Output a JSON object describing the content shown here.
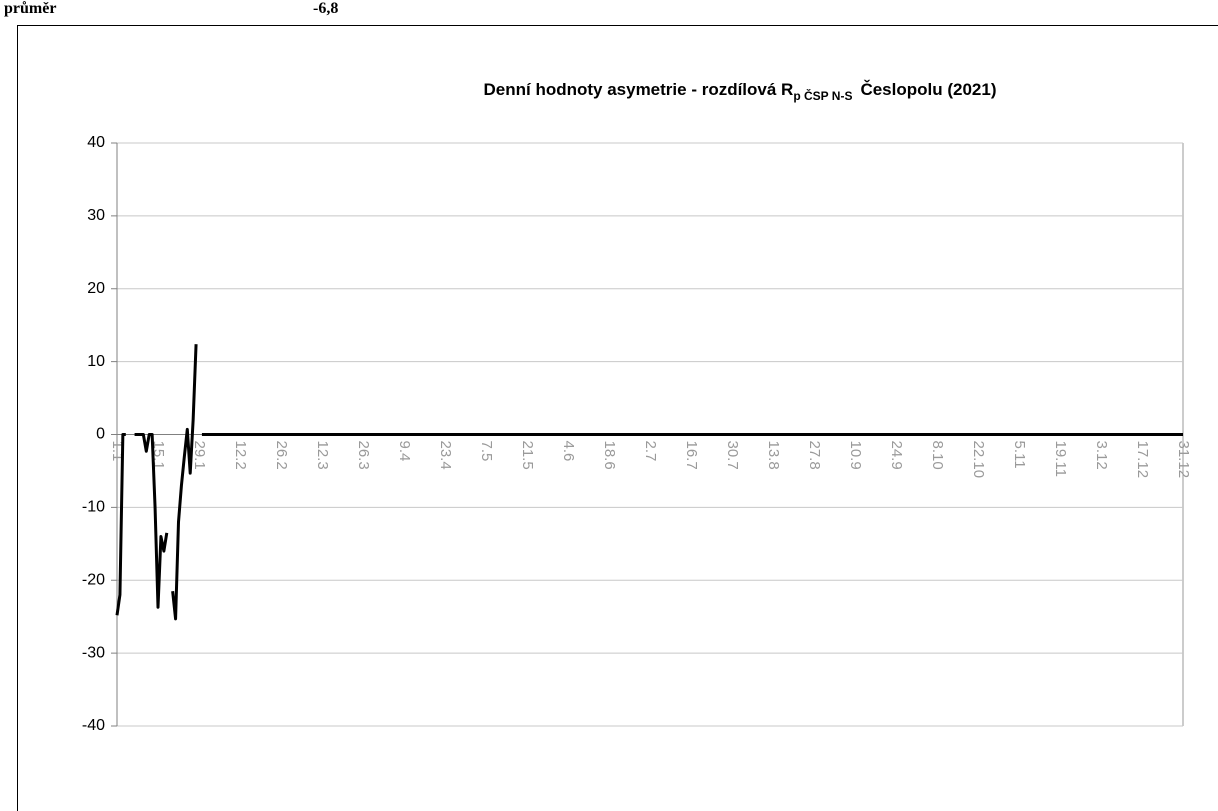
{
  "summary": {
    "label": "průměr",
    "value": "-6,8"
  },
  "chart_data": {
    "type": "line",
    "title": "Denní hodnoty asymetrie - rozdílová R",
    "title_sub": "p ČSP N-S",
    "title_end": "Česlopolu (2021)",
    "color": "#000000",
    "grid": true,
    "ylim": [
      -40,
      40
    ],
    "yticks": [
      -40,
      -30,
      -20,
      -10,
      0,
      10,
      20,
      30,
      40
    ],
    "categories": [
      "1.1",
      null,
      null,
      null,
      null,
      null,
      null,
      null,
      null,
      null,
      null,
      null,
      null,
      null,
      "15.1",
      null,
      null,
      null,
      null,
      null,
      null,
      null,
      null,
      null,
      null,
      null,
      null,
      null,
      "29.1",
      null,
      null,
      null,
      null,
      null,
      null,
      null,
      null,
      null,
      null,
      null,
      null,
      null,
      "12.2",
      null,
      null,
      null,
      null,
      null,
      null,
      null,
      null,
      null,
      null,
      null,
      null,
      null,
      "26.2",
      null,
      null,
      null,
      null,
      null,
      null,
      null,
      null,
      null,
      null,
      null,
      null,
      null,
      "12.3",
      null,
      null,
      null,
      null,
      null,
      null,
      null,
      null,
      null,
      null,
      null,
      null,
      null,
      "26.3",
      null,
      null,
      null,
      null,
      null,
      null,
      null,
      null,
      null,
      null,
      null,
      null,
      null,
      "9.4",
      null,
      null,
      null,
      null,
      null,
      null,
      null,
      null,
      null,
      null,
      null,
      null,
      null,
      "23.4",
      null,
      null,
      null,
      null,
      null,
      null,
      null,
      null,
      null,
      null,
      null,
      null,
      null,
      "7.5",
      null,
      null,
      null,
      null,
      null,
      null,
      null,
      null,
      null,
      null,
      null,
      null,
      null,
      "21.5",
      null,
      null,
      null,
      null,
      null,
      null,
      null,
      null,
      null,
      null,
      null,
      null,
      null,
      "4.6",
      null,
      null,
      null,
      null,
      null,
      null,
      null,
      null,
      null,
      null,
      null,
      null,
      null,
      "18.6",
      null,
      null,
      null,
      null,
      null,
      null,
      null,
      null,
      null,
      null,
      null,
      null,
      null,
      "2.7",
      null,
      null,
      null,
      null,
      null,
      null,
      null,
      null,
      null,
      null,
      null,
      null,
      null,
      "16.7",
      null,
      null,
      null,
      null,
      null,
      null,
      null,
      null,
      null,
      null,
      null,
      null,
      null,
      "30.7",
      null,
      null,
      null,
      null,
      null,
      null,
      null,
      null,
      null,
      null,
      null,
      null,
      null,
      "13.8",
      null,
      null,
      null,
      null,
      null,
      null,
      null,
      null,
      null,
      null,
      null,
      null,
      null,
      "27.8",
      null,
      null,
      null,
      null,
      null,
      null,
      null,
      null,
      null,
      null,
      null,
      null,
      null,
      "10.9",
      null,
      null,
      null,
      null,
      null,
      null,
      null,
      null,
      null,
      null,
      null,
      null,
      null,
      "24.9",
      null,
      null,
      null,
      null,
      null,
      null,
      null,
      null,
      null,
      null,
      null,
      null,
      null,
      "8.10",
      null,
      null,
      null,
      null,
      null,
      null,
      null,
      null,
      null,
      null,
      null,
      null,
      null,
      "22.10",
      null,
      null,
      null,
      null,
      null,
      null,
      null,
      null,
      null,
      null,
      null,
      null,
      null,
      "5.11",
      null,
      null,
      null,
      null,
      null,
      null,
      null,
      null,
      null,
      null,
      null,
      null,
      null,
      "19.11",
      null,
      null,
      null,
      null,
      null,
      null,
      null,
      null,
      null,
      null,
      null,
      null,
      null,
      "3.12",
      null,
      null,
      null,
      null,
      null,
      null,
      null,
      null,
      null,
      null,
      null,
      null,
      null,
      "17.12",
      null,
      null,
      null,
      null,
      null,
      null,
      null,
      null,
      null,
      null,
      null,
      null,
      null,
      "31.12"
    ],
    "values": [
      -24.8,
      -22,
      0,
      0,
      null,
      null,
      0,
      0,
      0,
      0,
      -2.3,
      0,
      0,
      -10,
      -23.7,
      -14,
      -16,
      -13.5,
      null,
      -21.5,
      -25.3,
      -12,
      -7,
      -3,
      0.7,
      -5.3,
      2,
      12.4,
      null,
      0,
      0,
      0,
      0,
      0,
      0,
      0,
      0,
      0,
      0,
      0,
      0,
      0,
      0,
      0,
      0,
      0,
      0,
      0,
      0,
      0,
      0,
      0,
      0,
      0,
      0,
      0,
      0,
      0,
      0,
      0,
      0,
      0,
      0,
      0,
      0,
      0,
      0,
      0,
      0,
      0,
      0,
      0,
      0,
      0,
      0,
      0,
      0,
      0,
      0,
      0,
      0,
      0,
      0,
      0,
      0,
      0,
      0,
      0,
      0,
      0,
      0,
      0,
      0,
      0,
      0,
      0,
      0,
      0,
      0,
      0,
      0,
      0,
      0,
      0,
      0,
      0,
      0,
      0,
      0,
      0,
      0,
      0,
      0,
      0,
      0,
      0,
      0,
      0,
      0,
      0,
      0,
      0,
      0,
      0,
      0,
      0,
      0,
      0,
      0,
      0,
      0,
      0,
      0,
      0,
      0,
      0,
      0,
      0,
      0,
      0,
      0,
      0,
      0,
      0,
      0,
      0,
      0,
      0,
      0,
      0,
      0,
      0,
      0,
      0,
      0,
      0,
      0,
      0,
      0,
      0,
      0,
      0,
      0,
      0,
      0,
      0,
      0,
      0,
      0,
      0,
      0,
      0,
      0,
      0,
      0,
      0,
      0,
      0,
      0,
      0,
      0,
      0,
      0,
      0,
      0,
      0,
      0,
      0,
      0,
      0,
      0,
      0,
      0,
      0,
      0,
      0,
      0,
      0,
      0,
      0,
      0,
      0,
      0,
      0,
      0,
      0,
      0,
      0,
      0,
      0,
      0,
      0,
      0,
      0,
      0,
      0,
      0,
      0,
      0,
      0,
      0,
      0,
      0,
      0,
      0,
      0,
      0,
      0,
      0,
      0,
      0,
      0,
      0,
      0,
      0,
      0,
      0,
      0,
      0,
      0,
      0,
      0,
      0,
      0,
      0,
      0,
      0,
      0,
      0,
      0,
      0,
      0,
      0,
      0,
      0,
      0,
      0,
      0,
      0,
      0,
      0,
      0,
      0,
      0,
      0,
      0,
      0,
      0,
      0,
      0,
      0,
      0,
      0,
      0,
      0,
      0,
      0,
      0,
      0,
      0,
      0,
      0,
      0,
      0,
      0,
      0,
      0,
      0,
      0,
      0,
      0,
      0,
      0,
      0,
      0,
      0,
      0,
      0,
      0,
      0,
      0,
      0,
      0,
      0,
      0,
      0,
      0,
      0,
      0,
      0,
      0,
      0,
      0,
      0,
      0,
      0,
      0,
      0,
      0,
      0,
      0,
      0,
      0,
      0,
      0,
      0,
      0,
      0,
      0,
      0,
      0,
      0,
      0,
      0,
      0,
      0,
      0,
      0,
      0,
      0,
      0,
      0,
      0,
      0,
      0,
      0,
      0,
      0,
      0,
      0,
      0,
      0,
      0,
      0,
      0,
      0,
      0,
      0,
      0,
      0,
      0,
      0,
      0,
      0,
      0
    ]
  }
}
